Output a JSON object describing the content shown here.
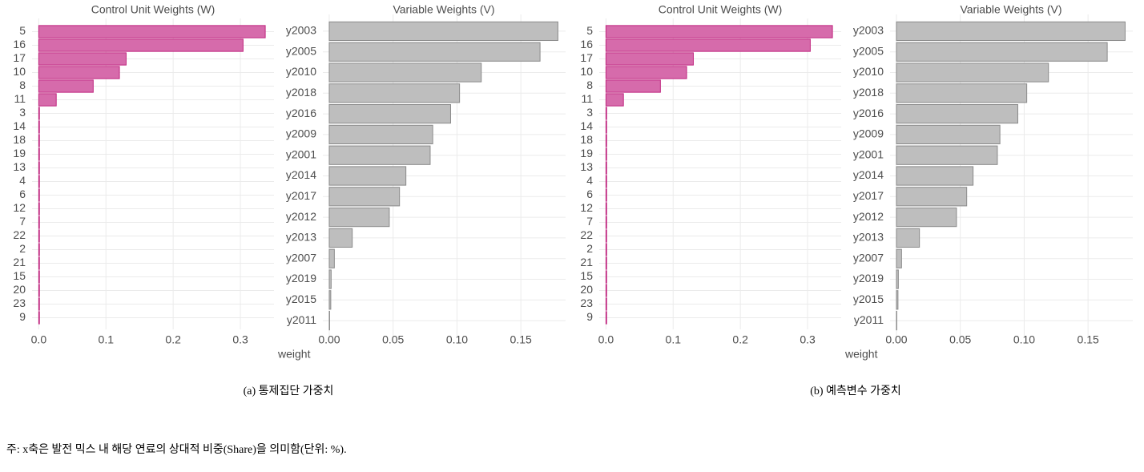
{
  "chart_data": [
    {
      "type": "barh",
      "title": "Control Unit Weights (W)",
      "categories": [
        "5",
        "16",
        "17",
        "10",
        "8",
        "11",
        "3",
        "14",
        "18",
        "19",
        "13",
        "4",
        "6",
        "12",
        "7",
        "22",
        "2",
        "21",
        "15",
        "20",
        "23",
        "9"
      ],
      "values": [
        0.337,
        0.304,
        0.13,
        0.12,
        0.081,
        0.026,
        0.001,
        0.001,
        0.001,
        0.001,
        0.001,
        0.001,
        0.001,
        0.001,
        0.001,
        0.001,
        0.001,
        0.001,
        0.001,
        0.001,
        0.001,
        0.001
      ],
      "color": "#d66bab",
      "edgecolor": "#c0267f",
      "xlim": [
        -0.01,
        0.35
      ],
      "xticks": [
        {
          "value": 0,
          "label": "0.0"
        },
        0.1,
        0.2,
        0.3
      ],
      "grid": true
    },
    {
      "type": "barh",
      "title": "Variable Weights (V)",
      "xlabel": "weight",
      "categories": [
        "y2003",
        "y2005",
        "y2010",
        "y2018",
        "y2016",
        "y2009",
        "y2001",
        "y2014",
        "y2017",
        "y2012",
        "y2013",
        "y2007",
        "y2019",
        "y2015",
        "y2011"
      ],
      "values": [
        0.179,
        0.165,
        0.119,
        0.102,
        0.095,
        0.081,
        0.079,
        0.06,
        0.055,
        0.047,
        0.018,
        0.004,
        0.0015,
        0.0012,
        0.0003
      ],
      "color": "#bebebe",
      "edgecolor": "#8a8a8a",
      "xlim": [
        -0.005,
        0.185
      ],
      "xticks": [
        {
          "value": 0,
          "label": "0.00"
        },
        {
          "value": 0.05,
          "label": "0.05"
        },
        {
          "value": 0.1,
          "label": "0.10"
        },
        {
          "value": 0.15,
          "label": "0.15"
        }
      ],
      "grid": true
    },
    {
      "type": "barh",
      "title": "Control Unit Weights (W)",
      "categories": [
        "5",
        "16",
        "17",
        "10",
        "8",
        "11",
        "3",
        "14",
        "18",
        "19",
        "13",
        "4",
        "6",
        "12",
        "7",
        "22",
        "2",
        "21",
        "15",
        "20",
        "23",
        "9"
      ],
      "values": [
        0.337,
        0.304,
        0.13,
        0.12,
        0.081,
        0.026,
        0.001,
        0.001,
        0.001,
        0.001,
        0.001,
        0.001,
        0.001,
        0.001,
        0.001,
        0.001,
        0.001,
        0.001,
        0.001,
        0.001,
        0.001,
        0.001
      ],
      "color": "#d66bab",
      "edgecolor": "#c0267f",
      "xlim": [
        -0.01,
        0.35
      ],
      "xticks": [
        {
          "value": 0,
          "label": "0.0"
        },
        0.1,
        0.2,
        0.3
      ],
      "grid": true
    },
    {
      "type": "barh",
      "title": "Variable Weights (V)",
      "xlabel": "weight",
      "categories": [
        "y2003",
        "y2005",
        "y2010",
        "y2018",
        "y2016",
        "y2009",
        "y2001",
        "y2014",
        "y2017",
        "y2012",
        "y2013",
        "y2007",
        "y2019",
        "y2015",
        "y2011"
      ],
      "values": [
        0.179,
        0.165,
        0.119,
        0.102,
        0.095,
        0.081,
        0.079,
        0.06,
        0.055,
        0.047,
        0.018,
        0.004,
        0.0015,
        0.0012,
        0.0003
      ],
      "color": "#bebebe",
      "edgecolor": "#8a8a8a",
      "xlim": [
        -0.005,
        0.185
      ],
      "xticks": [
        {
          "value": 0,
          "label": "0.00"
        },
        {
          "value": 0.05,
          "label": "0.05"
        },
        {
          "value": 0.1,
          "label": "0.10"
        },
        {
          "value": 0.15,
          "label": "0.15"
        }
      ],
      "grid": true
    }
  ],
  "captions": [
    "(a) 통제집단 가중치",
    "(b) 예측변수 가중치"
  ],
  "note": "주: x축은 발전 믹스 내 해당 연료의 상대적 비중(Share)을 의미함(단위: %)."
}
